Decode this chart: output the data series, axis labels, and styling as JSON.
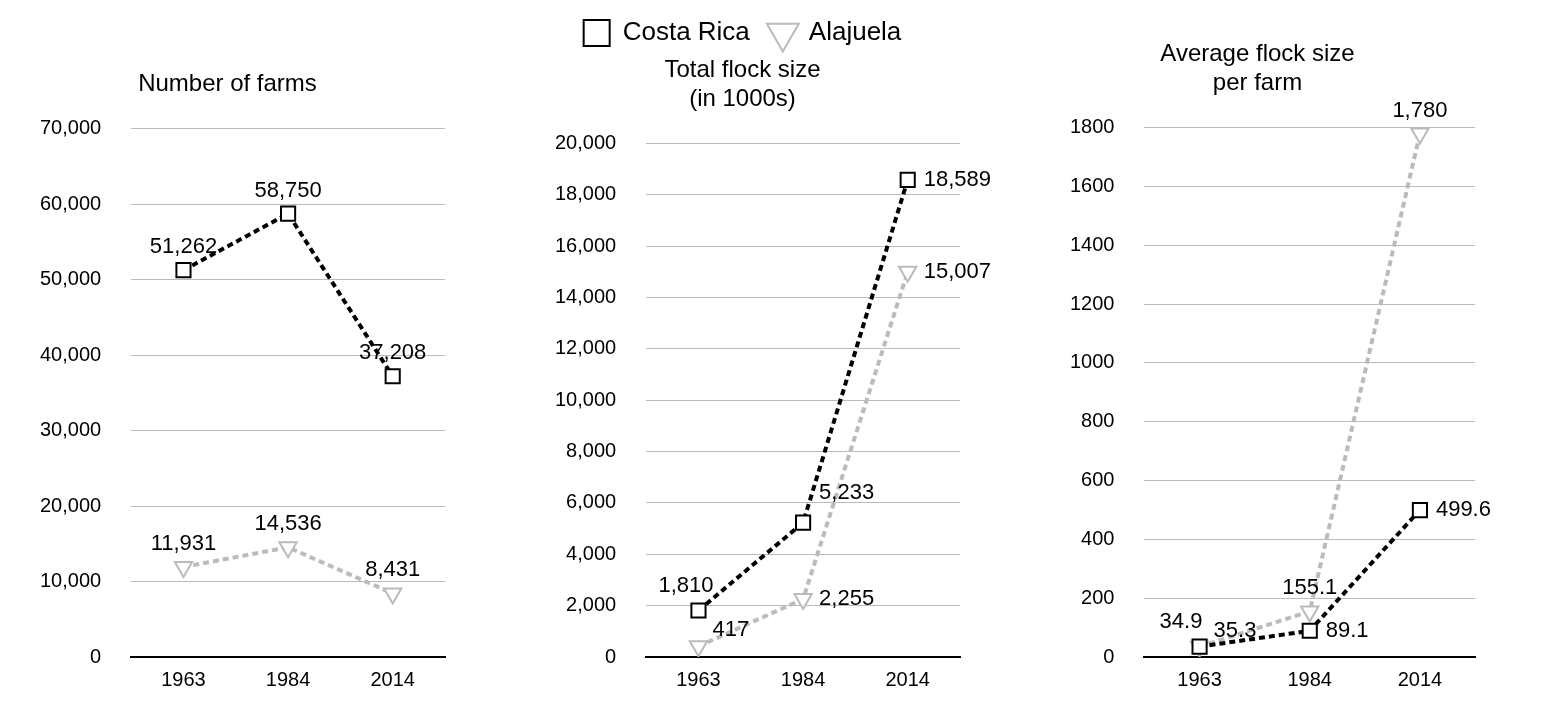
{
  "chart_data": [
    {
      "type": "line",
      "title": "Number of farms",
      "categories": [
        "1963",
        "1984",
        "2014"
      ],
      "ylim": [
        0,
        70000
      ],
      "yticks": [
        0,
        {
          "value": 10000,
          "label": "10,000"
        },
        {
          "value": 20000,
          "label": "20,000"
        },
        {
          "value": 30000,
          "label": "30,000"
        },
        {
          "value": 40000,
          "label": "40,000"
        },
        {
          "value": 50000,
          "label": "50,000"
        },
        {
          "value": 60000,
          "label": "60,000"
        },
        {
          "value": 70000,
          "label": "70,000"
        }
      ],
      "grid": "y",
      "line_style": "dashed",
      "series": [
        {
          "color": "#000000",
          "marker": "square",
          "values": [
            51262,
            58750,
            37208
          ],
          "value_labels": [
            "51,262",
            "58,750",
            "37,208"
          ]
        },
        {
          "color": "#bbbbbb",
          "marker": "triangle",
          "values": [
            11931,
            14536,
            8431
          ],
          "value_labels": [
            "11,931",
            "14,536",
            "8,431"
          ]
        }
      ]
    },
    {
      "type": "line",
      "title": "Total flock size\n(in 1000s)",
      "categories": [
        "1963",
        "1984",
        "2014"
      ],
      "ylim": [
        0,
        20000
      ],
      "yticks": [
        0,
        {
          "value": 2000,
          "label": "2,000"
        },
        {
          "value": 4000,
          "label": "4,000"
        },
        {
          "value": 6000,
          "label": "6,000"
        },
        {
          "value": 8000,
          "label": "8,000"
        },
        {
          "value": 10000,
          "label": "10,000"
        },
        {
          "value": 12000,
          "label": "12,000"
        },
        {
          "value": 14000,
          "label": "14,000"
        },
        {
          "value": 16000,
          "label": "16,000"
        },
        {
          "value": 18000,
          "label": "18,000"
        },
        {
          "value": 20000,
          "label": "20,000"
        }
      ],
      "grid": "y",
      "line_style": "dashed",
      "legend": "top",
      "series": [
        {
          "name": "Costa Rica",
          "color": "#000000",
          "marker": "square",
          "values": [
            1810,
            5233,
            18589
          ],
          "value_labels": [
            "1,810",
            "5,233",
            "18,589"
          ]
        },
        {
          "name": "Alajuela",
          "color": "#bbbbbb",
          "marker": "triangle",
          "values": [
            417,
            2255,
            15007
          ],
          "value_labels": [
            "417",
            "2,255",
            "15,007"
          ]
        }
      ]
    },
    {
      "type": "line",
      "title": "Average flock size\nper farm",
      "categories": [
        "1963",
        "1984",
        "2014"
      ],
      "ylim": [
        0,
        1800
      ],
      "yticks": [
        0,
        200,
        400,
        600,
        800,
        1000,
        1200,
        1400,
        1600,
        1800
      ],
      "grid": "y",
      "line_style": "dashed",
      "series": [
        {
          "color": "#000000",
          "marker": "square",
          "values": [
            35.3,
            89.1,
            499.6
          ],
          "value_labels": [
            "35.3",
            "89.1",
            "499.6"
          ]
        },
        {
          "color": "#bbbbbb",
          "marker": "triangle",
          "values": [
            34.9,
            155.1,
            1780
          ],
          "value_labels": [
            "34.9",
            "155.1",
            "1,780"
          ]
        }
      ]
    }
  ]
}
